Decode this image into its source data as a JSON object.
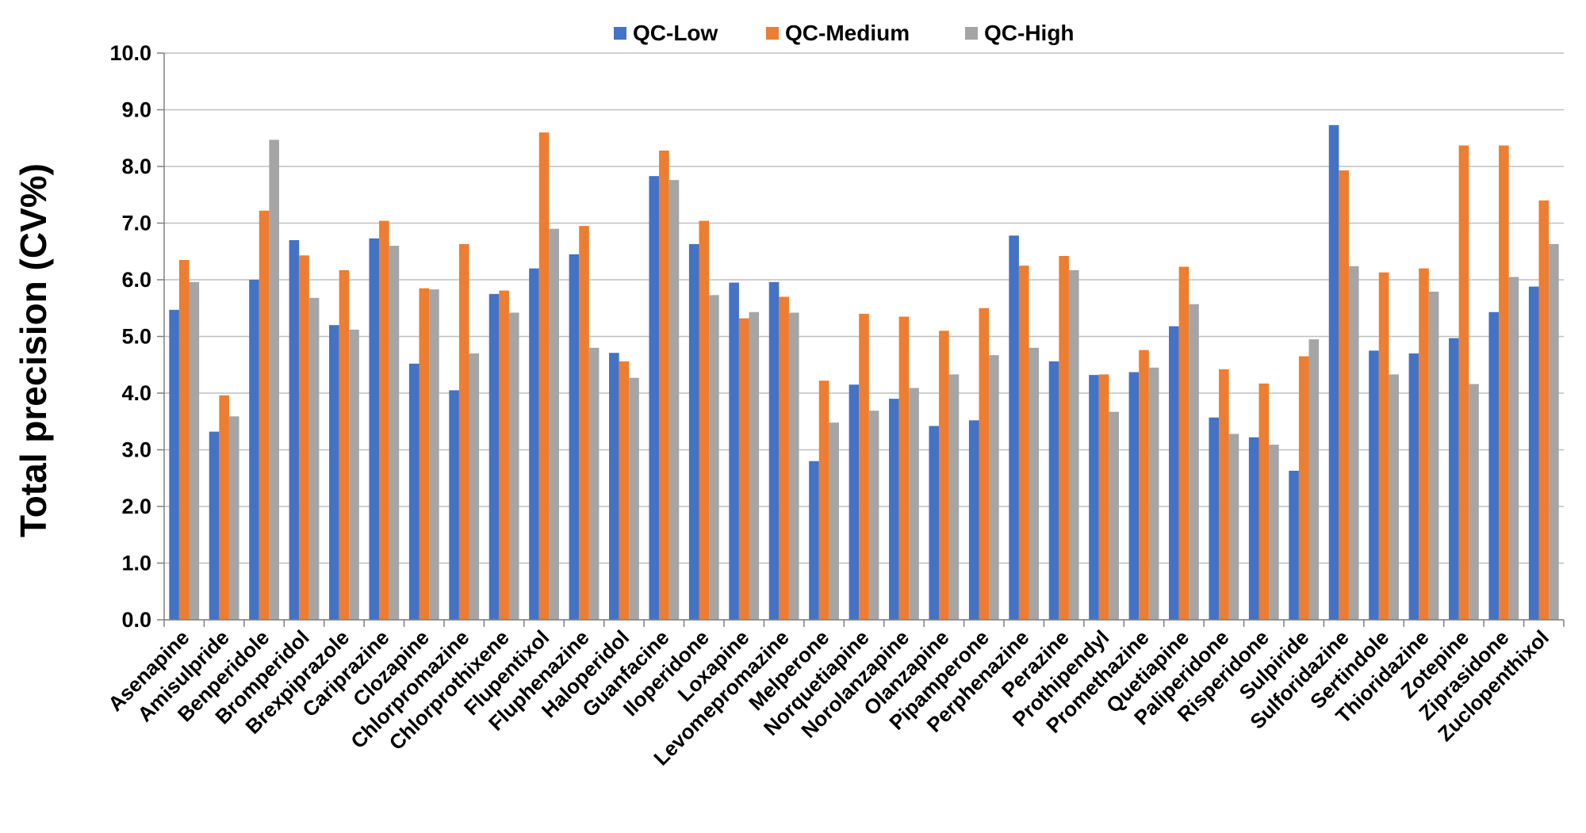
{
  "chart_data": {
    "type": "bar",
    "title": "",
    "xlabel": "",
    "ylabel": "Total precision (CV%)",
    "ylim": [
      0,
      10
    ],
    "yticks": [
      "0.0",
      "1.0",
      "2.0",
      "3.0",
      "4.0",
      "5.0",
      "6.0",
      "7.0",
      "8.0",
      "9.0",
      "10.0"
    ],
    "grid": true,
    "legend_position": "top-center",
    "categories": [
      "Asenapine",
      "Amisulpride",
      "Benperidole",
      "Bromperidol",
      "Brexpiprazole",
      "Cariprazine",
      "Clozapine",
      "Chlorpromazine",
      "Chlorprothixene",
      "Flupentixol",
      "Fluphenazine",
      "Haloperidol",
      "Guanfacine",
      "Iloperidone",
      "Loxapine",
      "Levomepromazine",
      "Melperone",
      "Norquetiapine",
      "Norolanzapine",
      "Olanzapine",
      "Pipamperone",
      "Perphenazine",
      "Perazine",
      "Prothipendyl",
      "Promethazine",
      "Quetiapine",
      "Paliperidone",
      "Risperidone",
      "Sulpiride",
      "Sulforidazine",
      "Sertindole",
      "Thioridazine",
      "Zotepine",
      "Ziprasidone",
      "Zuclopenthixol"
    ],
    "series": [
      {
        "name": "QC-Low",
        "color": "#4472c4",
        "values": [
          5.47,
          3.32,
          6.0,
          6.7,
          5.2,
          6.73,
          4.52,
          4.05,
          5.75,
          6.2,
          6.45,
          4.71,
          7.83,
          6.63,
          5.95,
          5.96,
          2.8,
          4.15,
          3.9,
          3.42,
          3.52,
          6.78,
          4.56,
          4.32,
          4.37,
          5.18,
          3.57,
          3.22,
          2.63,
          8.73,
          4.75,
          4.7,
          4.97,
          5.43,
          5.88
        ]
      },
      {
        "name": "QC-Medium",
        "color": "#ed7d31",
        "values": [
          6.35,
          3.96,
          7.22,
          6.43,
          6.17,
          7.04,
          5.85,
          6.63,
          5.81,
          8.6,
          6.95,
          4.56,
          8.28,
          7.04,
          5.32,
          5.7,
          4.22,
          5.4,
          5.35,
          5.1,
          5.5,
          6.25,
          6.42,
          4.33,
          4.76,
          6.23,
          4.42,
          4.17,
          4.65,
          7.93,
          6.13,
          6.2,
          8.37,
          8.37,
          7.4
        ]
      },
      {
        "name": "QC-High",
        "color": "#a5a5a5",
        "values": [
          5.96,
          3.59,
          8.47,
          5.68,
          5.12,
          6.6,
          5.83,
          4.7,
          5.42,
          6.9,
          4.8,
          4.27,
          7.76,
          5.73,
          5.43,
          5.42,
          3.48,
          3.69,
          4.09,
          4.33,
          4.67,
          4.8,
          6.17,
          3.67,
          4.45,
          5.57,
          3.28,
          3.09,
          4.95,
          6.24,
          4.33,
          5.79,
          4.16,
          6.05,
          6.63
        ]
      }
    ]
  }
}
